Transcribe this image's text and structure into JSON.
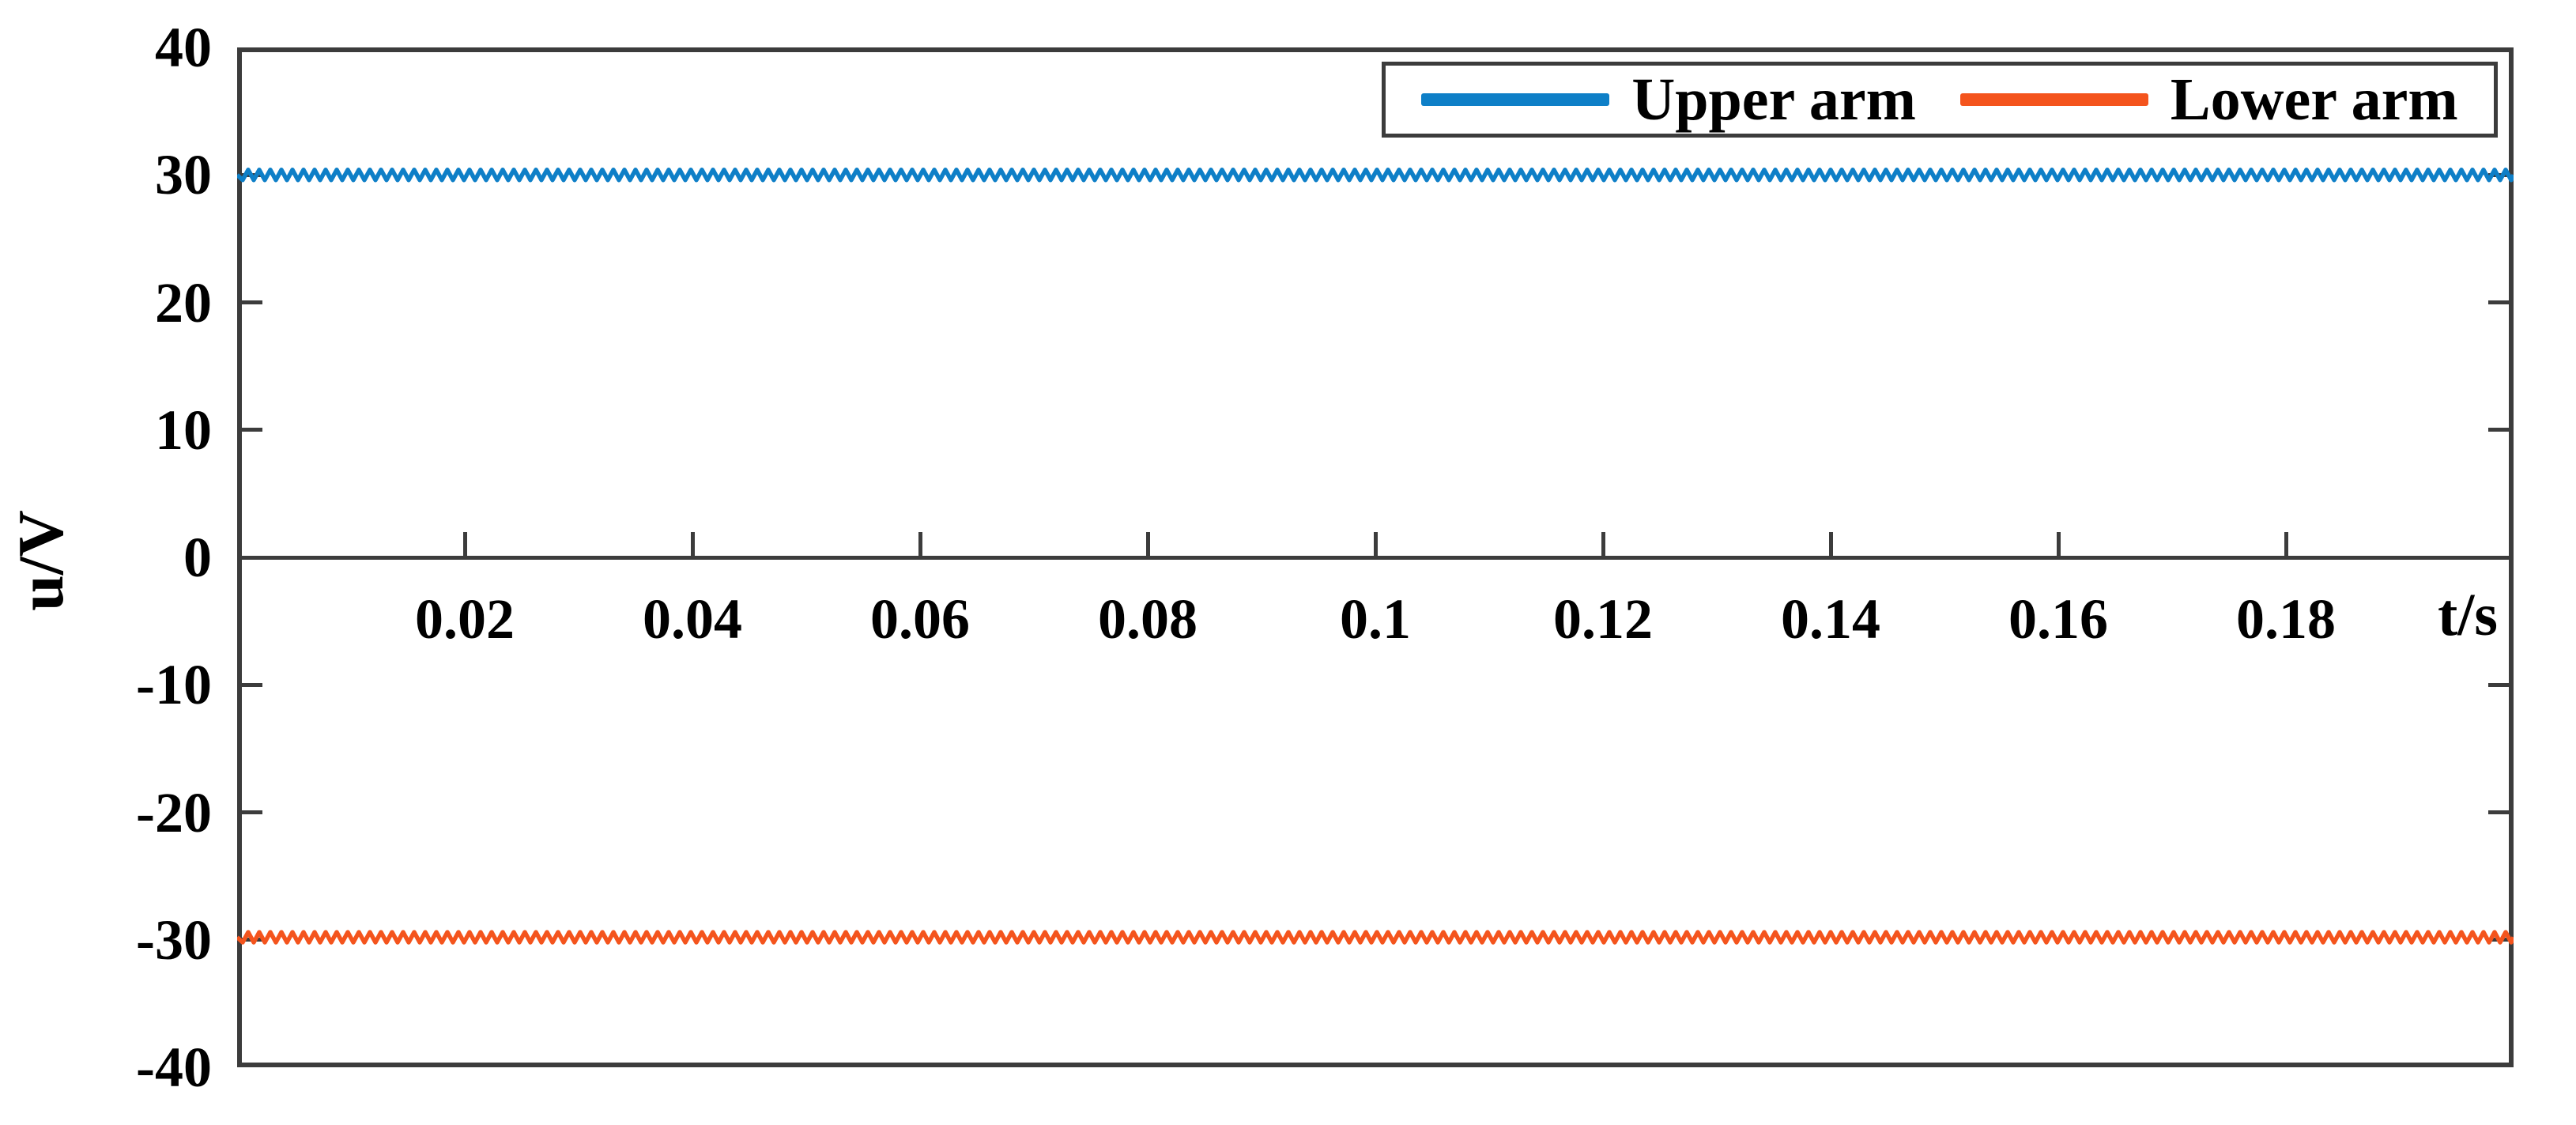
{
  "figure": {
    "background_color": "#ffffff",
    "axis_color": "#3c3c3c",
    "text_color": "#000000"
  },
  "chart_data": {
    "type": "line",
    "title": "",
    "xlabel": "t/s",
    "ylabel": "u/V",
    "xlim": [
      0,
      0.2
    ],
    "ylim": [
      -40,
      40
    ],
    "x_ticks": [
      0.02,
      0.04,
      0.06,
      0.08,
      0.1,
      0.12,
      0.14,
      0.16,
      0.18
    ],
    "x_tick_labels": [
      "0.02",
      "0.04",
      "0.06",
      "0.08",
      "0.1",
      "0.12",
      "0.14",
      "0.16",
      "0.18"
    ],
    "y_ticks": [
      40,
      30,
      20,
      10,
      0,
      -10,
      -20,
      -30,
      -40
    ],
    "y_tick_labels": [
      "40",
      "30",
      "20",
      "10",
      "0",
      "-10",
      "-20",
      "-30",
      "-40"
    ],
    "grid": false,
    "x_axis_location": "origin",
    "legend_position": "top-right",
    "series": [
      {
        "name": "Upper arm",
        "color": "#0e7fc7",
        "shape": "constant-with-ripple",
        "mean_value": 30,
        "ripple_amplitude": 0.4,
        "x_start": 0,
        "x_end": 0.2
      },
      {
        "name": "Lower arm",
        "color": "#f4541d",
        "shape": "constant-with-ripple",
        "mean_value": -29.8,
        "ripple_amplitude": 0.4,
        "x_start": 0,
        "x_end": 0.2
      }
    ]
  }
}
